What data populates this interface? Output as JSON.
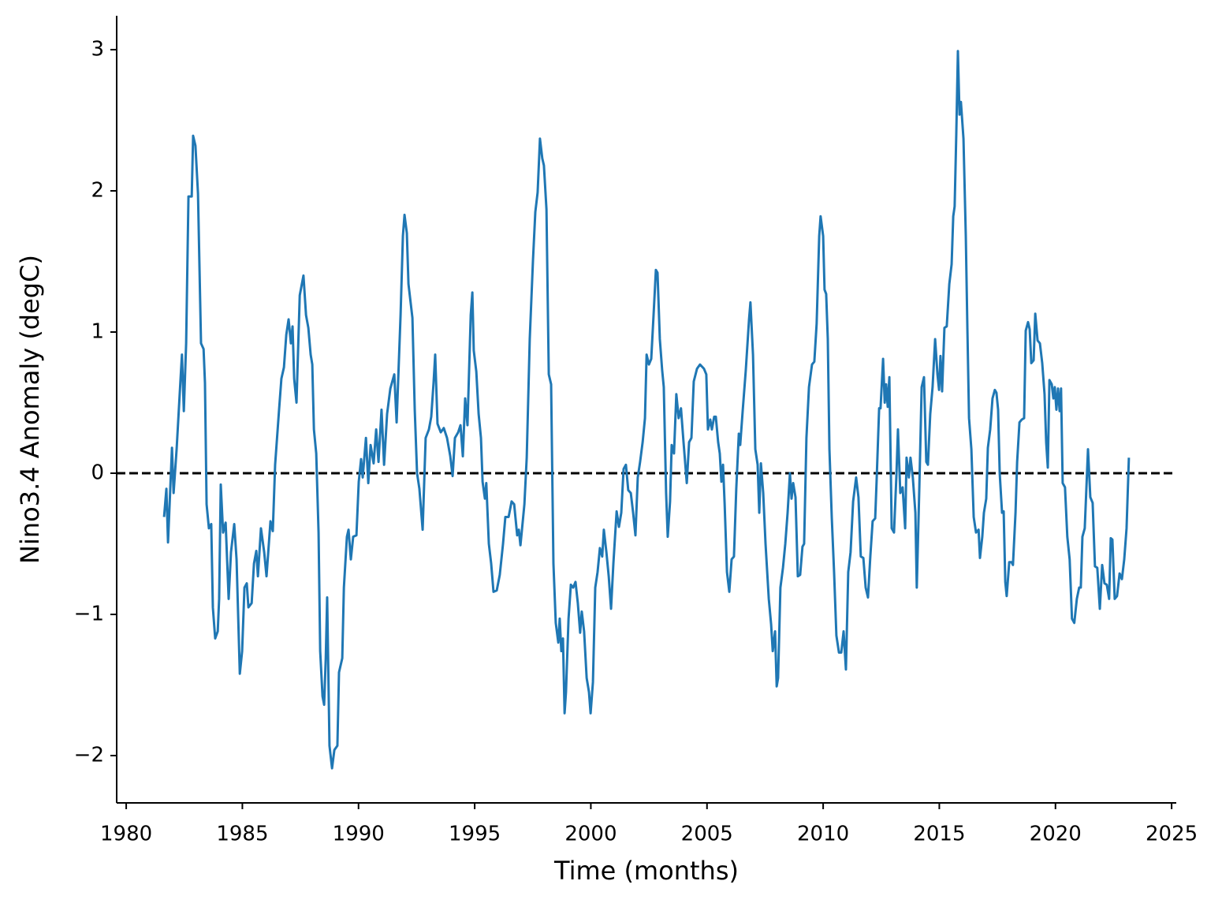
{
  "chart_data": {
    "type": "line",
    "xlabel": "Time (months)",
    "ylabel": "Nino3.4 Anomaly (degC)",
    "color": "#1f77b4",
    "xlim": [
      1979.59,
      2025.2
    ],
    "ylim": [
      -2.335,
      3.24
    ],
    "xticks": [
      1980,
      1985,
      1990,
      1995,
      2000,
      2005,
      2010,
      2015,
      2020,
      2025
    ],
    "yticks": [
      {
        "value": -2,
        "label": "−2"
      },
      {
        "value": -1,
        "label": "−1"
      },
      0,
      1,
      2,
      3
    ],
    "hline": 0,
    "hline_color": "#000000",
    "x": [
      1981.63,
      1981.73,
      1981.8,
      1981.97,
      1982.04,
      1982.17,
      1982.34,
      1982.4,
      1982.48,
      1982.58,
      1982.68,
      1982.82,
      1982.88,
      1982.98,
      1983.09,
      1983.22,
      1983.33,
      1983.39,
      1983.46,
      1983.56,
      1983.66,
      1983.73,
      1983.83,
      1983.94,
      1984.0,
      1984.07,
      1984.17,
      1984.28,
      1984.41,
      1984.51,
      1984.65,
      1984.75,
      1984.89,
      1984.99,
      1985.09,
      1985.19,
      1985.26,
      1985.4,
      1985.5,
      1985.6,
      1985.67,
      1985.8,
      1985.94,
      1986.04,
      1986.21,
      1986.31,
      1986.41,
      1986.58,
      1986.68,
      1986.79,
      1986.89,
      1986.99,
      1987.09,
      1987.16,
      1987.23,
      1987.33,
      1987.47,
      1987.63,
      1987.74,
      1987.84,
      1987.94,
      1988.01,
      1988.08,
      1988.18,
      1988.28,
      1988.35,
      1988.45,
      1988.52,
      1988.59,
      1988.65,
      1988.75,
      1988.86,
      1988.96,
      1989.09,
      1989.16,
      1989.3,
      1989.37,
      1989.5,
      1989.57,
      1989.67,
      1989.77,
      1989.91,
      1990.01,
      1990.11,
      1990.18,
      1990.32,
      1990.42,
      1990.52,
      1990.65,
      1990.76,
      1990.86,
      1990.99,
      1991.1,
      1991.23,
      1991.37,
      1991.54,
      1991.64,
      1991.81,
      1991.91,
      1991.98,
      1992.08,
      1992.15,
      1992.32,
      1992.42,
      1992.52,
      1992.62,
      1992.76,
      1992.89,
      1993.03,
      1993.13,
      1993.23,
      1993.3,
      1993.4,
      1993.54,
      1993.67,
      1993.81,
      1993.95,
      1994.05,
      1994.15,
      1994.29,
      1994.39,
      1994.49,
      1994.59,
      1994.69,
      1994.83,
      1994.9,
      1994.96,
      1995.07,
      1995.17,
      1995.27,
      1995.34,
      1995.44,
      1995.5,
      1995.61,
      1995.71,
      1995.81,
      1995.95,
      1996.08,
      1996.22,
      1996.32,
      1996.46,
      1996.59,
      1996.7,
      1996.83,
      1996.9,
      1996.97,
      1997.07,
      1997.14,
      1997.24,
      1997.37,
      1997.51,
      1997.61,
      1997.71,
      1997.81,
      1997.91,
      1997.98,
      1998.09,
      1998.19,
      1998.29,
      1998.39,
      1998.49,
      1998.6,
      1998.66,
      1998.73,
      1998.8,
      1998.87,
      1998.93,
      1999.04,
      1999.14,
      1999.24,
      1999.34,
      1999.44,
      1999.54,
      1999.61,
      1999.71,
      1999.82,
      1999.92,
      1999.99,
      2000.09,
      2000.19,
      2000.29,
      2000.39,
      2000.49,
      2000.56,
      2000.67,
      2000.77,
      2000.87,
      2000.97,
      2001.11,
      2001.21,
      2001.31,
      2001.41,
      2001.51,
      2001.61,
      2001.72,
      2001.82,
      2001.92,
      2002.02,
      2002.12,
      2002.23,
      2002.33,
      2002.4,
      2002.5,
      2002.6,
      2002.7,
      2002.8,
      2002.87,
      2002.97,
      2003.07,
      2003.14,
      2003.24,
      2003.31,
      2003.41,
      2003.48,
      2003.58,
      2003.68,
      2003.78,
      2003.88,
      2003.99,
      2004.13,
      2004.23,
      2004.33,
      2004.43,
      2004.57,
      2004.7,
      2004.87,
      2004.97,
      2005.04,
      2005.14,
      2005.21,
      2005.31,
      2005.38,
      2005.48,
      2005.55,
      2005.62,
      2005.69,
      2005.76,
      2005.86,
      2005.96,
      2006.06,
      2006.16,
      2006.26,
      2006.37,
      2006.43,
      2006.54,
      2006.67,
      2006.81,
      2006.87,
      2006.98,
      2007.08,
      2007.18,
      2007.25,
      2007.32,
      2007.42,
      2007.52,
      2007.66,
      2007.76,
      2007.83,
      2007.93,
      2008.0,
      2008.06,
      2008.16,
      2008.27,
      2008.37,
      2008.47,
      2008.57,
      2008.64,
      2008.71,
      2008.81,
      2008.91,
      2009.01,
      2009.11,
      2009.18,
      2009.28,
      2009.39,
      2009.52,
      2009.62,
      2009.72,
      2009.83,
      2009.89,
      2010.0,
      2010.06,
      2010.13,
      2010.2,
      2010.27,
      2010.37,
      2010.47,
      2010.57,
      2010.68,
      2010.78,
      2010.88,
      2010.98,
      2011.08,
      2011.18,
      2011.29,
      2011.42,
      2011.52,
      2011.62,
      2011.73,
      2011.83,
      2011.93,
      2012.03,
      2012.13,
      2012.24,
      2012.3,
      2012.41,
      2012.47,
      2012.58,
      2012.65,
      2012.71,
      2012.78,
      2012.85,
      2012.95,
      2013.05,
      2013.15,
      2013.22,
      2013.32,
      2013.42,
      2013.53,
      2013.59,
      2013.69,
      2013.76,
      2013.86,
      2013.97,
      2014.03,
      2014.14,
      2014.24,
      2014.34,
      2014.44,
      2014.51,
      2014.61,
      2014.71,
      2014.82,
      2014.92,
      2014.99,
      2015.05,
      2015.12,
      2015.22,
      2015.32,
      2015.43,
      2015.53,
      2015.6,
      2015.66,
      2015.73,
      2015.8,
      2015.87,
      2015.93,
      2016.04,
      2016.14,
      2016.21,
      2016.28,
      2016.38,
      2016.48,
      2016.58,
      2016.69,
      2016.75,
      2016.85,
      2016.92,
      2017.02,
      2017.09,
      2017.19,
      2017.29,
      2017.39,
      2017.46,
      2017.53,
      2017.6,
      2017.7,
      2017.77,
      2017.84,
      2017.9,
      2018.01,
      2018.11,
      2018.17,
      2018.28,
      2018.35,
      2018.45,
      2018.55,
      2018.65,
      2018.72,
      2018.82,
      2018.89,
      2018.96,
      2019.06,
      2019.13,
      2019.23,
      2019.33,
      2019.43,
      2019.53,
      2019.6,
      2019.67,
      2019.74,
      2019.84,
      2019.91,
      2019.97,
      2020.04,
      2020.11,
      2020.18,
      2020.24,
      2020.31,
      2020.41,
      2020.51,
      2020.61,
      2020.71,
      2020.81,
      2020.92,
      2021.02,
      2021.09,
      2021.16,
      2021.26,
      2021.33,
      2021.4,
      2021.5,
      2021.6,
      2021.7,
      2021.8,
      2021.91,
      2022.01,
      2022.11,
      2022.21,
      2022.31,
      2022.38,
      2022.45,
      2022.55,
      2022.65,
      2022.76,
      2022.86,
      2022.96,
      2023.06,
      2023.16
    ],
    "values": [
      -0.31,
      -0.11,
      -0.49,
      0.18,
      -0.14,
      0.17,
      0.67,
      0.84,
      0.44,
      0.92,
      1.96,
      1.96,
      2.39,
      2.32,
      1.98,
      0.92,
      0.88,
      0.64,
      -0.22,
      -0.39,
      -0.36,
      -0.95,
      -1.17,
      -1.12,
      -0.89,
      -0.08,
      -0.42,
      -0.35,
      -0.89,
      -0.56,
      -0.36,
      -0.61,
      -1.42,
      -1.26,
      -0.81,
      -0.78,
      -0.95,
      -0.92,
      -0.64,
      -0.55,
      -0.73,
      -0.39,
      -0.56,
      -0.73,
      -0.34,
      -0.41,
      0.06,
      0.45,
      0.67,
      0.75,
      0.98,
      1.09,
      0.92,
      1.04,
      0.67,
      0.5,
      1.26,
      1.4,
      1.12,
      1.03,
      0.84,
      0.77,
      0.31,
      0.14,
      -0.42,
      -1.26,
      -1.58,
      -1.64,
      -1.31,
      -0.88,
      -1.93,
      -2.09,
      -1.96,
      -1.93,
      -1.41,
      -1.31,
      -0.81,
      -0.45,
      -0.4,
      -0.61,
      -0.45,
      -0.44,
      -0.06,
      0.1,
      -0.03,
      0.25,
      -0.07,
      0.2,
      0.07,
      0.31,
      0.08,
      0.45,
      0.06,
      0.42,
      0.6,
      0.7,
      0.36,
      1.12,
      1.68,
      1.83,
      1.7,
      1.34,
      1.1,
      0.45,
      0,
      -0.11,
      -0.4,
      0.25,
      0.31,
      0.4,
      0.64,
      0.84,
      0.35,
      0.29,
      0.32,
      0.25,
      0.12,
      -0.02,
      0.25,
      0.29,
      0.34,
      0.12,
      0.53,
      0.34,
      1.12,
      1.28,
      0.87,
      0.72,
      0.42,
      0.25,
      -0.06,
      -0.18,
      -0.07,
      -0.5,
      -0.64,
      -0.84,
      -0.83,
      -0.72,
      -0.5,
      -0.31,
      -0.31,
      -0.2,
      -0.22,
      -0.44,
      -0.4,
      -0.51,
      -0.34,
      -0.22,
      0.11,
      0.95,
      1.51,
      1.85,
      1.99,
      2.37,
      2.23,
      2.18,
      1.87,
      0.7,
      0.63,
      -0.64,
      -1.06,
      -1.2,
      -1.03,
      -1.26,
      -1.17,
      -1.7,
      -1.55,
      -1.03,
      -0.79,
      -0.81,
      -0.77,
      -0.92,
      -1.13,
      -0.98,
      -1.12,
      -1.45,
      -1.55,
      -1.7,
      -1.48,
      -0.81,
      -0.7,
      -0.53,
      -0.59,
      -0.4,
      -0.56,
      -0.73,
      -0.96,
      -0.64,
      -0.27,
      -0.38,
      -0.28,
      0.03,
      0.06,
      -0.12,
      -0.14,
      -0.28,
      -0.44,
      -0.03,
      0.08,
      0.22,
      0.39,
      0.84,
      0.77,
      0.81,
      1.12,
      1.44,
      1.42,
      0.95,
      0.73,
      0.61,
      -0.14,
      -0.45,
      -0.2,
      0.2,
      0.14,
      0.56,
      0.39,
      0.46,
      0.22,
      -0.07,
      0.22,
      0.25,
      0.65,
      0.74,
      0.77,
      0.74,
      0.7,
      0.31,
      0.38,
      0.31,
      0.4,
      0.4,
      0.22,
      0.14,
      -0.06,
      0.06,
      -0.22,
      -0.7,
      -0.84,
      -0.61,
      -0.59,
      -0.11,
      0.28,
      0.2,
      0.45,
      0.73,
      1.09,
      1.21,
      0.84,
      0.17,
      0.06,
      -0.28,
      0.07,
      -0.14,
      -0.5,
      -0.89,
      -1.07,
      -1.26,
      -1.12,
      -1.51,
      -1.45,
      -0.81,
      -0.67,
      -0.5,
      -0.28,
      0,
      -0.18,
      -0.07,
      -0.17,
      -0.73,
      -0.72,
      -0.52,
      -0.5,
      0.25,
      0.61,
      0.77,
      0.79,
      1.06,
      1.68,
      1.82,
      1.68,
      1.3,
      1.27,
      0.95,
      0.17,
      -0.31,
      -0.7,
      -1.15,
      -1.27,
      -1.27,
      -1.12,
      -1.39,
      -0.7,
      -0.56,
      -0.2,
      -0.03,
      -0.17,
      -0.59,
      -0.6,
      -0.81,
      -0.88,
      -0.59,
      -0.34,
      -0.32,
      -0.06,
      0.46,
      0.46,
      0.81,
      0.5,
      0.63,
      0.47,
      0.68,
      -0.39,
      -0.42,
      -0.03,
      0.31,
      -0.14,
      -0.1,
      -0.39,
      0.11,
      -0.03,
      0.11,
      -0.03,
      -0.28,
      -0.81,
      -0.1,
      0.61,
      0.68,
      0.08,
      0.06,
      0.42,
      0.61,
      0.95,
      0.7,
      0.59,
      0.83,
      0.58,
      1.03,
      1.04,
      1.34,
      1.48,
      1.82,
      1.89,
      2.4,
      2.99,
      2.54,
      2.63,
      2.37,
      1.68,
      1.01,
      0.39,
      0.17,
      -0.31,
      -0.42,
      -0.4,
      -0.6,
      -0.45,
      -0.28,
      -0.18,
      0.18,
      0.31,
      0.53,
      0.59,
      0.57,
      0.45,
      0,
      -0.28,
      -0.27,
      -0.77,
      -0.87,
      -0.63,
      -0.63,
      -0.65,
      -0.28,
      0.08,
      0.36,
      0.38,
      0.39,
      1.01,
      1.07,
      1.02,
      0.78,
      0.8,
      1.13,
      0.94,
      0.92,
      0.78,
      0.56,
      0.22,
      0.04,
      0.66,
      0.63,
      0.53,
      0.61,
      0.45,
      0.6,
      0.44,
      0.6,
      -0.07,
      -0.1,
      -0.45,
      -0.61,
      -1.03,
      -1.06,
      -0.89,
      -0.81,
      -0.81,
      -0.45,
      -0.39,
      -0.11,
      0.17,
      -0.17,
      -0.21,
      -0.66,
      -0.67,
      -0.96,
      -0.65,
      -0.78,
      -0.79,
      -0.89,
      -0.46,
      -0.47,
      -0.89,
      -0.87,
      -0.71,
      -0.75,
      -0.61,
      -0.39,
      0.11
    ]
  }
}
